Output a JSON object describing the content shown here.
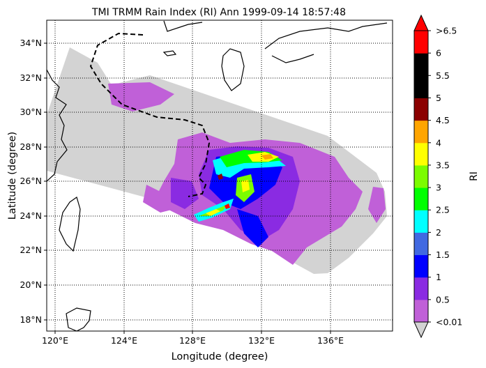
{
  "title": "TMI TRMM Rain Index (RI) Ann 1999-09-14 18:57:48",
  "xlabel": "Longitude (degree)",
  "ylabel": "Latitude (degree)",
  "x_ticks": [
    "120°E",
    "124°E",
    "128°E",
    "132°E",
    "136°E"
  ],
  "y_ticks": [
    "34°N",
    "32°N",
    "30°N",
    "28°N",
    "26°N",
    "24°N",
    "22°N",
    "20°N",
    "18°N"
  ],
  "colorbar": {
    "label": "RI",
    "tick_labels": [
      ">6.5",
      "6",
      "5.5",
      "5",
      "4.5",
      "4",
      "3.5",
      "3",
      "2.5",
      "2",
      "1.5",
      "1",
      "0.5",
      "<0.01"
    ],
    "colors": [
      "#c060d8",
      "#8a2be2",
      "#0000ff",
      "#4169e1",
      "#00ffff",
      "#00ff00",
      "#7cfc00",
      "#ffff00",
      "#ffa500",
      "#8b0000",
      "#000000",
      "#000000",
      "#ff0000"
    ],
    "under_color": "#d3d3d3",
    "over_color": "#ff0000"
  },
  "colors": {
    "no_rain_swath": "#d3d3d3",
    "coastline": "#000000",
    "grid": "#000000"
  },
  "map": {
    "lon_range": [
      119.5,
      139.3
    ],
    "lat_range": [
      17.4,
      35.3
    ],
    "projection": "equirectangular",
    "grid": "dotted"
  }
}
